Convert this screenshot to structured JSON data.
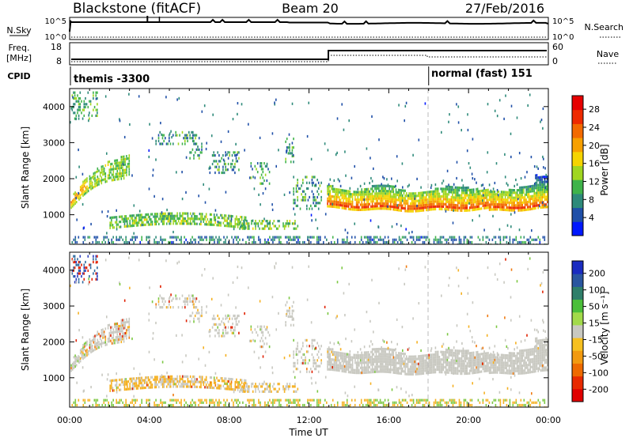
{
  "header": {
    "station": "Blackstone (fitACF)",
    "beam": "Beam 20",
    "date": "27/Feb/2016"
  },
  "summary_panels": {
    "nsky": {
      "label": "N.Sky",
      "ticks": [
        "10^5",
        "10^0"
      ],
      "right_label": "N.Search",
      "right_ticks": [
        "10^5",
        "10^0"
      ]
    },
    "freq": {
      "label_top": "Freq.",
      "label_bottom": "[MHz]",
      "ticks": [
        "18",
        "8"
      ],
      "right_label": "Nave",
      "right_ticks": [
        "60",
        "0"
      ]
    },
    "cpid": {
      "label": "CPID",
      "mode1": "themis -3300",
      "mode2": "normal (fast) 151",
      "switch_hour": 18.0
    }
  },
  "chart_data": [
    {
      "type": "heatmap",
      "name": "power",
      "ylabel": "Slant Range [km]",
      "xlabel": "",
      "xlim": [
        0,
        24
      ],
      "ylim": [
        180,
        4500
      ],
      "yticks": [
        "1000",
        "2000",
        "3000",
        "4000"
      ],
      "colorbar": {
        "label": "Power [dB]",
        "ticks": [
          "4",
          "8",
          "12",
          "16",
          "20",
          "24",
          "28"
        ],
        "colors": [
          "#0018ff",
          "#1f4fa8",
          "#2e8a7a",
          "#3fb34a",
          "#a0d620",
          "#f5d400",
          "#f7a000",
          "#f36a00",
          "#ee2a00",
          "#e60000"
        ]
      }
    },
    {
      "type": "heatmap",
      "name": "velocity",
      "ylabel": "Slant Range [km]",
      "xlabel": "Time UT",
      "xlim": [
        0,
        24
      ],
      "ylim": [
        180,
        4500
      ],
      "yticks": [
        "1000",
        "2000",
        "3000",
        "4000"
      ],
      "xticks": [
        "00:00",
        "04:00",
        "08:00",
        "12:00",
        "16:00",
        "20:00",
        "00:00"
      ],
      "colorbar": {
        "label": "Velocity [m s⁻¹]",
        "ticks": [
          "200",
          "100",
          "50",
          "15",
          "-15",
          "-50",
          "-100",
          "-200"
        ],
        "colors": [
          "#1a2cc0",
          "#2a56a0",
          "#2f7f6a",
          "#4bbf3a",
          "#a2da4a",
          "#c8c8c0",
          "#f6c020",
          "#f29a10",
          "#ee6a00",
          "#e82a00",
          "#e00000"
        ]
      }
    }
  ]
}
